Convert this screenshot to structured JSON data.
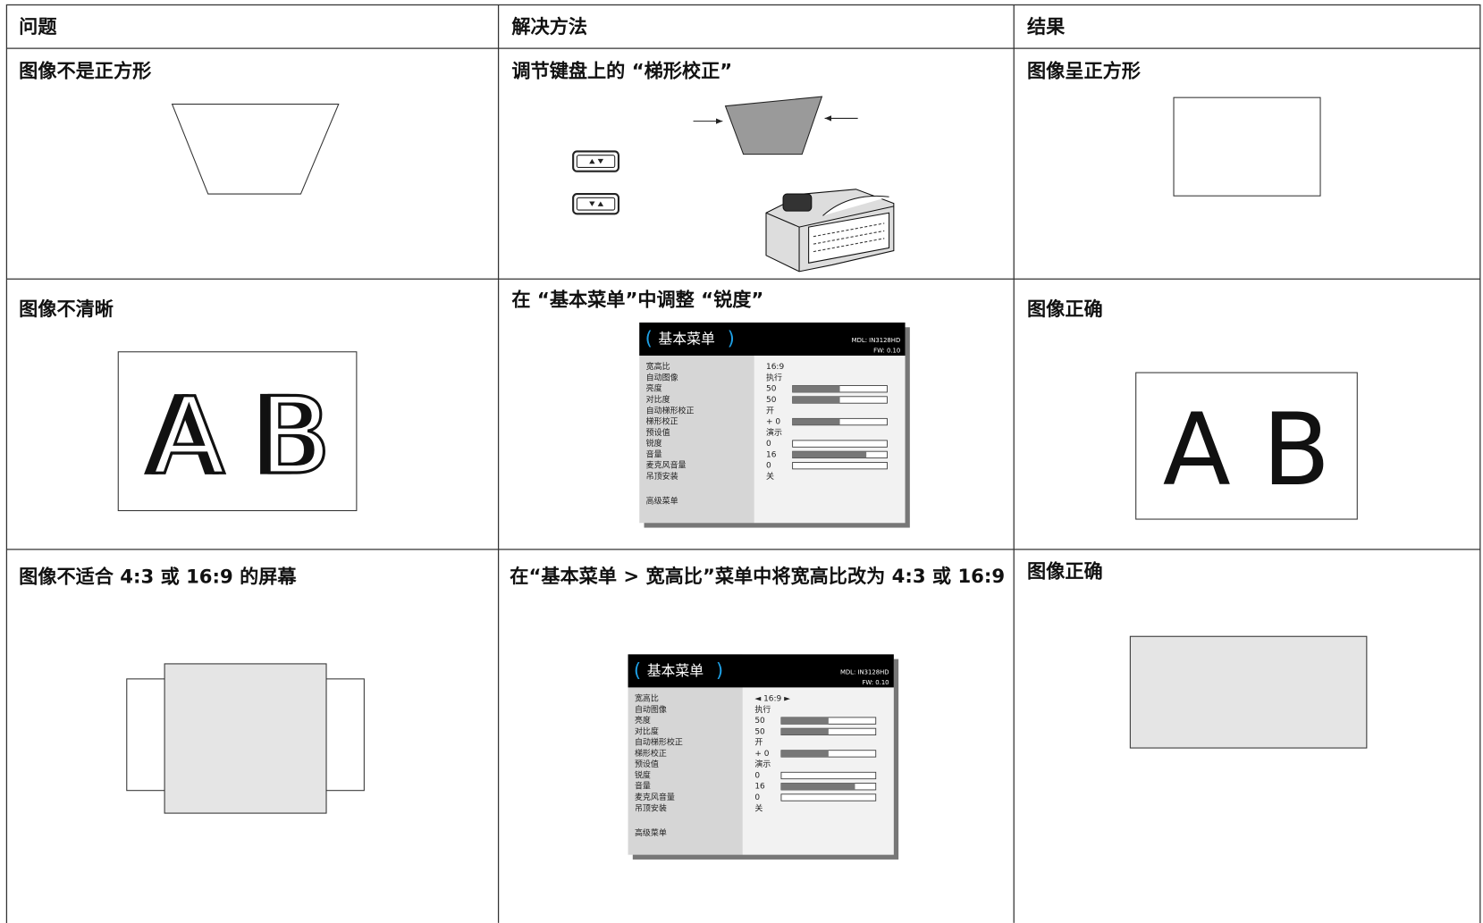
{
  "table": {
    "header": [
      "问题",
      "解决方法",
      "结果"
    ],
    "rows": [
      {
        "problem": "图像不是正方形",
        "solution": {
          "text": "调节键盘上的 “梯形校正”"
        },
        "result": "图像呈正方形"
      },
      {
        "problem": "图像不清晰",
        "problem_letters": "A B",
        "solution": {
          "text": "在 “基本菜单”中调整 “锐度”",
          "menu": {
            "title": "基本菜单",
            "model": "MDL: IN3128HD",
            "firmware": "FW: 0.10",
            "selected": 7,
            "items": [
              {
                "label": "宽高比",
                "value": "16:9"
              },
              {
                "label": "自动图像",
                "value": "执行"
              },
              {
                "label": "亮度",
                "value": "50"
              },
              {
                "label": "对比度",
                "value": "50"
              },
              {
                "label": "自动梯形校正",
                "value": "开"
              },
              {
                "label": "梯形校正",
                "value": "+ 0"
              },
              {
                "label": "预设值",
                "value": "演示"
              },
              {
                "label": "锐度",
                "value": "0"
              },
              {
                "label": "音量",
                "value": "16"
              },
              {
                "label": "麦克风音量",
                "value": "0"
              },
              {
                "label": "吊顶安装",
                "value": "关"
              }
            ],
            "submenu": "高级菜单"
          }
        },
        "result": "图像正确",
        "result_letters": "A B"
      },
      {
        "problem": "图像不适合 4:3 或 16:9 的屏幕",
        "solution": {
          "text": "在“基本菜单 > 宽高比”菜单中将宽高比改为 4:3 或 16:9",
          "menu": {
            "title": "基本菜单",
            "model": "MDL: IN3128HD",
            "firmware": "FW: 0.10",
            "selected": 0,
            "items": [
              {
                "label": "宽高比",
                "value": "◄ 16:9 ►"
              },
              {
                "label": "自动图像",
                "value": "执行"
              },
              {
                "label": "亮度",
                "value": "50"
              },
              {
                "label": "对比度",
                "value": "50"
              },
              {
                "label": "自动梯形校正",
                "value": "开"
              },
              {
                "label": "梯形校正",
                "value": "+ 0"
              },
              {
                "label": "预设值",
                "value": "演示"
              },
              {
                "label": "锐度",
                "value": "0"
              },
              {
                "label": "音量",
                "value": "16"
              },
              {
                "label": "麦克风音量",
                "value": "0"
              },
              {
                "label": "吊顶安装",
                "value": "关"
              }
            ],
            "submenu": "高级菜单"
          }
        },
        "result": "图像正确"
      }
    ]
  }
}
